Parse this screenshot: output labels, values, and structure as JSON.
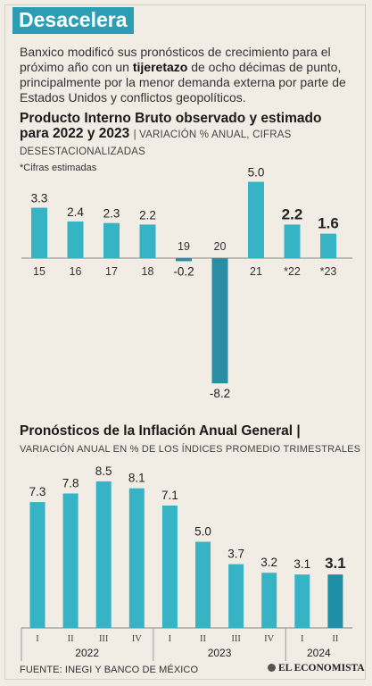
{
  "header": {
    "title": "Desacelera",
    "intro_before": "Banxico modificó sus pronósticos de crecimiento para el próximo año con un ",
    "intro_bold": "tijeretazo",
    "intro_after": " de ocho décimas de punto, principalmente por la menor demanda externa por parte de Estados Unidos y conflictos geopolíticos."
  },
  "chart_data": [
    {
      "type": "bar",
      "title": "Producto Interno Bruto observado y estimado para 2022 y 2023",
      "subtitle": "VARIACIÓN % ANUAL, CIFRAS DESESTACIONALIZADAS",
      "note": "*Cifras estimadas",
      "categories": [
        "15",
        "16",
        "17",
        "18",
        "19",
        "20",
        "21",
        "*22",
        "*23"
      ],
      "values": [
        3.3,
        2.4,
        2.3,
        2.2,
        -0.2,
        -8.2,
        5.0,
        2.2,
        1.6
      ],
      "labels": [
        "3.3",
        "2.4",
        "2.3",
        "2.2",
        "-0.2",
        "-8.2",
        "5.0",
        "2.2",
        "1.6"
      ],
      "highlighted": [
        "*22",
        "*23"
      ],
      "colors": {
        "bar": "#36b4c6",
        "negative_bar": "#2b8da3"
      }
    },
    {
      "type": "bar",
      "title": "Pronósticos de la Inflación Anual General",
      "subtitle": "VARIACIÓN ANUAL EN % DE LOS ÍNDICES PROMEDIO TRIMESTRALES",
      "categories": [
        "I",
        "II",
        "III",
        "IV",
        "I",
        "II",
        "III",
        "IV",
        "I",
        "II"
      ],
      "year_groups": [
        {
          "label": "2022",
          "count": 4
        },
        {
          "label": "2023",
          "count": 4
        },
        {
          "label": "2024",
          "count": 2
        }
      ],
      "values": [
        7.3,
        7.8,
        8.5,
        8.1,
        7.1,
        5.0,
        3.7,
        3.2,
        3.1,
        3.1
      ],
      "labels": [
        "7.3",
        "7.8",
        "8.5",
        "8.1",
        "7.1",
        "5.0",
        "3.7",
        "3.2",
        "3.1",
        "3.1"
      ],
      "highlighted_index": 9,
      "colors": {
        "bar": "#36b4c6",
        "highlight_bar": "#1f8fa5"
      }
    }
  ],
  "footer": {
    "source": "FUENTE: INEGI Y BANCO DE MÉXICO",
    "brand": "EL ECONOMISTA"
  }
}
